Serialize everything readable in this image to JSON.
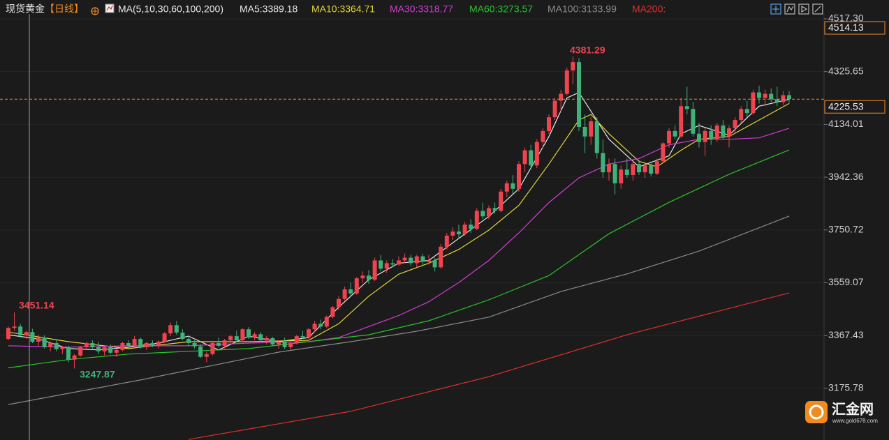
{
  "chart_data": {
    "type": "candlestick",
    "title": "现货黄金",
    "period": "【日线】",
    "indicator": "MA(5,10,30,60,100,200)",
    "up_color": "#ee4450",
    "down_color": "#3fb27a",
    "ylim": [
      2988,
      4535
    ],
    "yticks": [
      {
        "value": 4517.3,
        "label": "4517.30"
      },
      4325.65,
      4134.01,
      3942.36,
      3750.72,
      3559.07,
      3367.43,
      3175.78
    ],
    "grid": true,
    "crosshair_price": 4514.13,
    "ohlc": [
      [
        3355,
        3400,
        3350,
        3395
      ],
      [
        3395,
        3451.14,
        3385,
        3400
      ],
      [
        3400,
        3410,
        3360,
        3368
      ],
      [
        3368,
        3385,
        3355,
        3380
      ],
      [
        3380,
        3392,
        3340,
        3345
      ],
      [
        3345,
        3370,
        3330,
        3360
      ],
      [
        3360,
        3368,
        3320,
        3325
      ],
      [
        3325,
        3345,
        3310,
        3340
      ],
      [
        3340,
        3350,
        3310,
        3318
      ],
      [
        3318,
        3330,
        3300,
        3325
      ],
      [
        3325,
        3330,
        3270,
        3280
      ],
      [
        3280,
        3300,
        3247.87,
        3295
      ],
      [
        3295,
        3330,
        3290,
        3325
      ],
      [
        3325,
        3345,
        3315,
        3340
      ],
      [
        3340,
        3350,
        3320,
        3325
      ],
      [
        3325,
        3345,
        3300,
        3310
      ],
      [
        3310,
        3330,
        3295,
        3325
      ],
      [
        3325,
        3335,
        3300,
        3305
      ],
      [
        3305,
        3320,
        3290,
        3315
      ],
      [
        3315,
        3345,
        3310,
        3340
      ],
      [
        3340,
        3350,
        3325,
        3330
      ],
      [
        3330,
        3365,
        3325,
        3355
      ],
      [
        3355,
        3360,
        3320,
        3325
      ],
      [
        3325,
        3345,
        3315,
        3340
      ],
      [
        3340,
        3350,
        3325,
        3330
      ],
      [
        3330,
        3350,
        3320,
        3345
      ],
      [
        3345,
        3380,
        3340,
        3375
      ],
      [
        3375,
        3415,
        3365,
        3405
      ],
      [
        3405,
        3420,
        3370,
        3378
      ],
      [
        3378,
        3390,
        3350,
        3355
      ],
      [
        3355,
        3368,
        3330,
        3340
      ],
      [
        3340,
        3350,
        3320,
        3328
      ],
      [
        3328,
        3335,
        3285,
        3290
      ],
      [
        3290,
        3310,
        3270,
        3300
      ],
      [
        3300,
        3345,
        3295,
        3340
      ],
      [
        3340,
        3360,
        3325,
        3330
      ],
      [
        3330,
        3355,
        3320,
        3350
      ],
      [
        3350,
        3370,
        3340,
        3365
      ],
      [
        3365,
        3385,
        3345,
        3350
      ],
      [
        3350,
        3395,
        3345,
        3390
      ],
      [
        3390,
        3398,
        3355,
        3360
      ],
      [
        3360,
        3380,
        3350,
        3372
      ],
      [
        3372,
        3380,
        3345,
        3350
      ],
      [
        3350,
        3365,
        3335,
        3358
      ],
      [
        3358,
        3362,
        3330,
        3335
      ],
      [
        3335,
        3350,
        3320,
        3345
      ],
      [
        3345,
        3360,
        3318,
        3325
      ],
      [
        3325,
        3345,
        3315,
        3340
      ],
      [
        3340,
        3370,
        3335,
        3365
      ],
      [
        3365,
        3385,
        3355,
        3360
      ],
      [
        3360,
        3395,
        3355,
        3390
      ],
      [
        3390,
        3420,
        3380,
        3410
      ],
      [
        3410,
        3425,
        3390,
        3400
      ],
      [
        3400,
        3440,
        3395,
        3435
      ],
      [
        3435,
        3475,
        3430,
        3470
      ],
      [
        3470,
        3510,
        3460,
        3500
      ],
      [
        3500,
        3545,
        3495,
        3535
      ],
      [
        3535,
        3560,
        3510,
        3520
      ],
      [
        3520,
        3580,
        3515,
        3575
      ],
      [
        3575,
        3600,
        3560,
        3585
      ],
      [
        3585,
        3605,
        3555,
        3570
      ],
      [
        3570,
        3650,
        3565,
        3640
      ],
      [
        3640,
        3660,
        3600,
        3610
      ],
      [
        3610,
        3640,
        3595,
        3630
      ],
      [
        3630,
        3645,
        3615,
        3625
      ],
      [
        3625,
        3655,
        3620,
        3640
      ],
      [
        3640,
        3665,
        3630,
        3650
      ],
      [
        3650,
        3660,
        3620,
        3630
      ],
      [
        3630,
        3660,
        3615,
        3655
      ],
      [
        3655,
        3665,
        3625,
        3635
      ],
      [
        3635,
        3660,
        3625,
        3640
      ],
      [
        3640,
        3650,
        3600,
        3615
      ],
      [
        3615,
        3700,
        3610,
        3690
      ],
      [
        3690,
        3740,
        3680,
        3730
      ],
      [
        3730,
        3760,
        3715,
        3745
      ],
      [
        3745,
        3770,
        3720,
        3735
      ],
      [
        3735,
        3780,
        3730,
        3770
      ],
      [
        3770,
        3790,
        3740,
        3755
      ],
      [
        3755,
        3830,
        3750,
        3820
      ],
      [
        3820,
        3850,
        3790,
        3800
      ],
      [
        3800,
        3840,
        3790,
        3830
      ],
      [
        3830,
        3850,
        3810,
        3820
      ],
      [
        3820,
        3900,
        3815,
        3890
      ],
      [
        3890,
        3930,
        3870,
        3920
      ],
      [
        3920,
        3950,
        3880,
        3900
      ],
      [
        3900,
        4000,
        3890,
        3990
      ],
      [
        3990,
        4050,
        3960,
        4040
      ],
      [
        4040,
        4060,
        3970,
        3985
      ],
      [
        3985,
        4080,
        3975,
        4070
      ],
      [
        4070,
        4120,
        4050,
        4110
      ],
      [
        4110,
        4170,
        4100,
        4160
      ],
      [
        4160,
        4230,
        4150,
        4220
      ],
      [
        4220,
        4260,
        4180,
        4245
      ],
      [
        4245,
        4340,
        4240,
        4330
      ],
      [
        4330,
        4381.29,
        4280,
        4360
      ],
      [
        4360,
        4375,
        4110,
        4125
      ],
      [
        4125,
        4170,
        4030,
        4090
      ],
      [
        4090,
        4160,
        4060,
        4145
      ],
      [
        4145,
        4160,
        4010,
        4030
      ],
      [
        4030,
        4080,
        3940,
        3960
      ],
      [
        3960,
        4010,
        3930,
        3990
      ],
      [
        3990,
        4010,
        3880,
        3920
      ],
      [
        3920,
        3985,
        3900,
        3970
      ],
      [
        3970,
        4010,
        3940,
        3950
      ],
      [
        3950,
        4000,
        3930,
        3990
      ],
      [
        3990,
        4005,
        3950,
        3960
      ],
      [
        3960,
        3990,
        3940,
        3985
      ],
      [
        3985,
        4000,
        3945,
        3955
      ],
      [
        3955,
        4010,
        3950,
        4000
      ],
      [
        4000,
        4070,
        3995,
        4065
      ],
      [
        4065,
        4120,
        4050,
        4110
      ],
      [
        4110,
        4130,
        4080,
        4090
      ],
      [
        4090,
        4230,
        4085,
        4200
      ],
      [
        4200,
        4270,
        4170,
        4190
      ],
      [
        4190,
        4215,
        4090,
        4100
      ],
      [
        4100,
        4140,
        4050,
        4070
      ],
      [
        4070,
        4120,
        4020,
        4110
      ],
      [
        4110,
        4130,
        4060,
        4080
      ],
      [
        4080,
        4140,
        4070,
        4130
      ],
      [
        4130,
        4150,
        4080,
        4090
      ],
      [
        4090,
        4130,
        4050,
        4120
      ],
      [
        4120,
        4160,
        4100,
        4150
      ],
      [
        4150,
        4200,
        4140,
        4190
      ],
      [
        4190,
        4220,
        4160,
        4175
      ],
      [
        4175,
        4260,
        4170,
        4250
      ],
      [
        4250,
        4275,
        4210,
        4230
      ],
      [
        4230,
        4260,
        4200,
        4245
      ],
      [
        4245,
        4265,
        4215,
        4225
      ],
      [
        4225,
        4270,
        4200,
        4215
      ],
      [
        4215,
        4255,
        4205,
        4240
      ],
      [
        4240,
        4255,
        4210,
        4225.53
      ]
    ],
    "series": [
      {
        "name": "MA5",
        "legend": "MA5:3389.18",
        "color": "#e6e6e6",
        "x": [
          0,
          5,
          10,
          15,
          20,
          25,
          30,
          35,
          40,
          45,
          50,
          55,
          60,
          65,
          70,
          75,
          80,
          85,
          90,
          93,
          95,
          100,
          105,
          110,
          112,
          115,
          120,
          125,
          130
        ],
        "values": [
          3370,
          3355,
          3320,
          3315,
          3325,
          3340,
          3365,
          3315,
          3365,
          3345,
          3360,
          3470,
          3570,
          3630,
          3640,
          3720,
          3800,
          3900,
          4090,
          4230,
          4250,
          4080,
          3980,
          4020,
          4100,
          4130,
          4095,
          4200,
          4225
        ]
      },
      {
        "name": "MA10",
        "legend": "MA10:3364.71",
        "color": "#e3d43a",
        "x": [
          0,
          10,
          20,
          30,
          40,
          50,
          55,
          60,
          65,
          70,
          75,
          80,
          85,
          90,
          95,
          97,
          100,
          105,
          108,
          112,
          115,
          120,
          125,
          130
        ],
        "values": [
          3380,
          3345,
          3320,
          3345,
          3345,
          3350,
          3410,
          3510,
          3590,
          3630,
          3680,
          3750,
          3840,
          3990,
          4150,
          4170,
          4100,
          4000,
          3980,
          4040,
          4080,
          4090,
          4150,
          4210
        ]
      },
      {
        "name": "MA30",
        "legend": "MA30:3318.77",
        "color": "#d33cd3",
        "x": [
          0,
          10,
          20,
          30,
          40,
          50,
          55,
          60,
          65,
          70,
          75,
          80,
          85,
          90,
          95,
          100,
          105,
          110,
          115,
          120,
          125,
          130
        ],
        "values": [
          3330,
          3325,
          3330,
          3330,
          3340,
          3345,
          3360,
          3400,
          3440,
          3490,
          3560,
          3640,
          3740,
          3850,
          3940,
          3990,
          4010,
          4060,
          4080,
          4080,
          4085,
          4120
        ]
      },
      {
        "name": "MA60",
        "legend": "MA60:3273.57",
        "color": "#2ac22a",
        "x": [
          0,
          10,
          20,
          30,
          40,
          50,
          60,
          70,
          80,
          90,
          100,
          110,
          120,
          130
        ],
        "values": [
          3250,
          3280,
          3300,
          3310,
          3320,
          3345,
          3370,
          3421,
          3497,
          3585,
          3737,
          3851,
          3953,
          4041
        ]
      },
      {
        "name": "MA100",
        "legend": "MA100:3133.99",
        "color": "#8a8a8a",
        "x": [
          0,
          22,
          45,
          57,
          68,
          80,
          92,
          103,
          115,
          130
        ],
        "values": [
          3117,
          3206,
          3307,
          3345,
          3383,
          3434,
          3527,
          3591,
          3674,
          3801
        ]
      },
      {
        "name": "MA200",
        "legend": "MA200:",
        "color": "#e0302e",
        "x": [
          30,
          57,
          80,
          103,
          130
        ],
        "values": [
          2990,
          3092,
          3218,
          3370,
          3522
        ]
      }
    ],
    "watermark": {
      "name": "汇金网",
      "url": "www.gold678.com"
    }
  }
}
